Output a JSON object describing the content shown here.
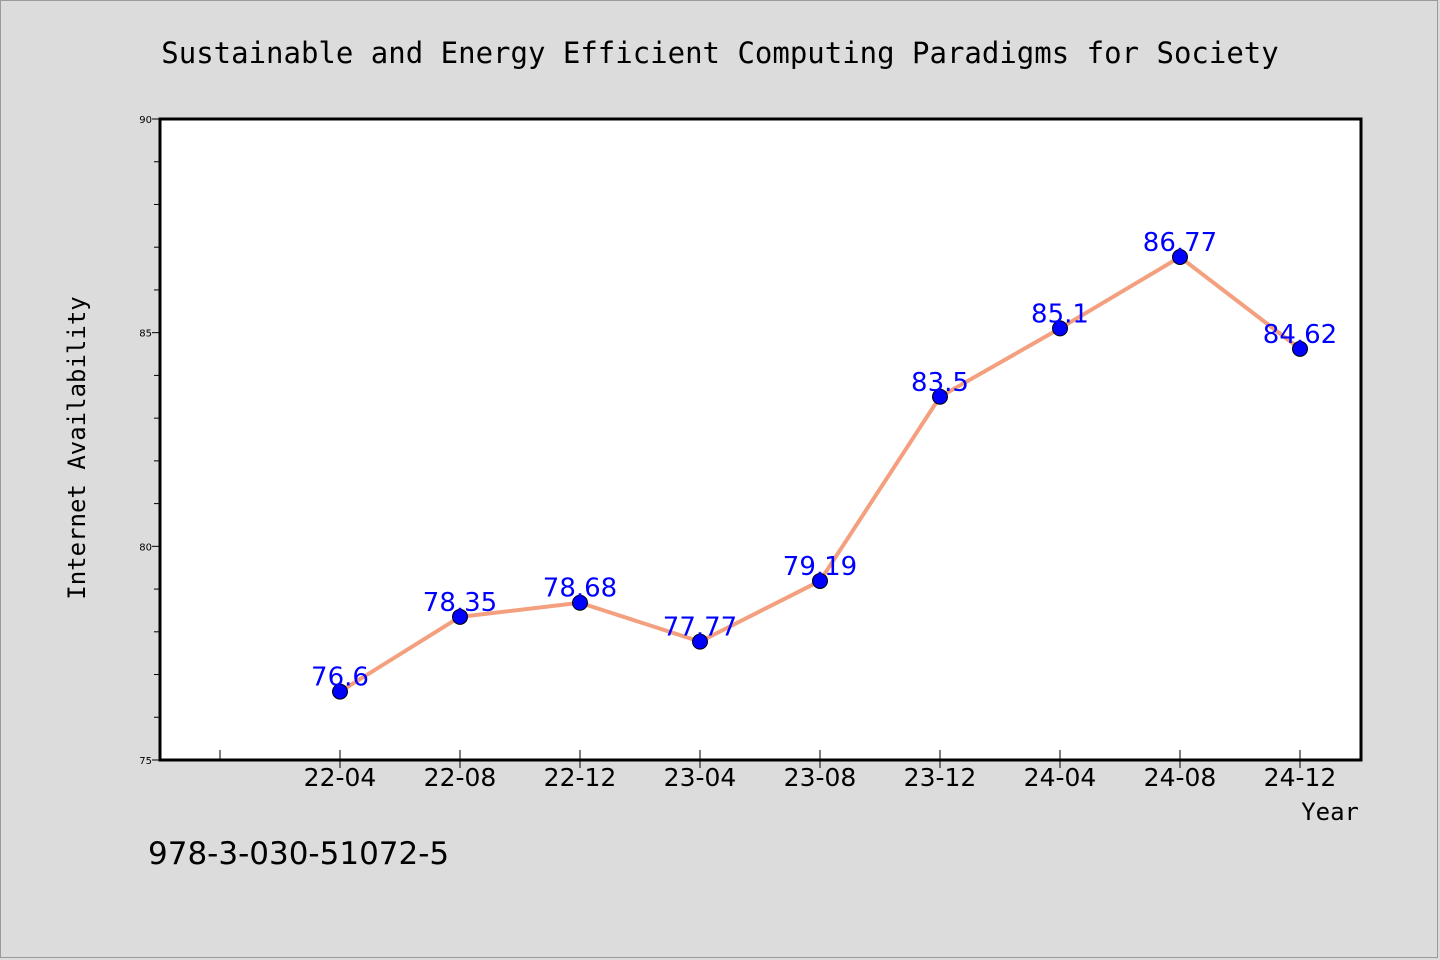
{
  "chart_data": {
    "type": "line",
    "title": "Sustainable and Energy Efficient Computing Paradigms for Society",
    "xlabel": "Year",
    "ylabel": "Internet Availability",
    "categories": [
      "22-04",
      "22-08",
      "22-12",
      "23-04",
      "23-08",
      "23-12",
      "24-04",
      "24-08",
      "24-12"
    ],
    "series": [
      {
        "values": [
          76.6,
          78.35,
          78.68,
          77.77,
          79.19,
          83.5,
          85.1,
          86.77,
          84.62
        ],
        "labels": [
          "76.6",
          "78.35",
          "78.68",
          "77.77",
          "79.19",
          "83.5",
          "85.1",
          "86.77",
          "84.62"
        ],
        "line_color": "#f4a07f",
        "marker_color": "#0000ff"
      }
    ],
    "ylim": [
      75,
      90
    ],
    "yticks": [
      75,
      80,
      85,
      90
    ],
    "ytick_labels": [
      "75",
      "80",
      "85",
      "90"
    ],
    "grid": false,
    "label_color": "#0000ff"
  },
  "footnote": "978-3-030-51072-5"
}
